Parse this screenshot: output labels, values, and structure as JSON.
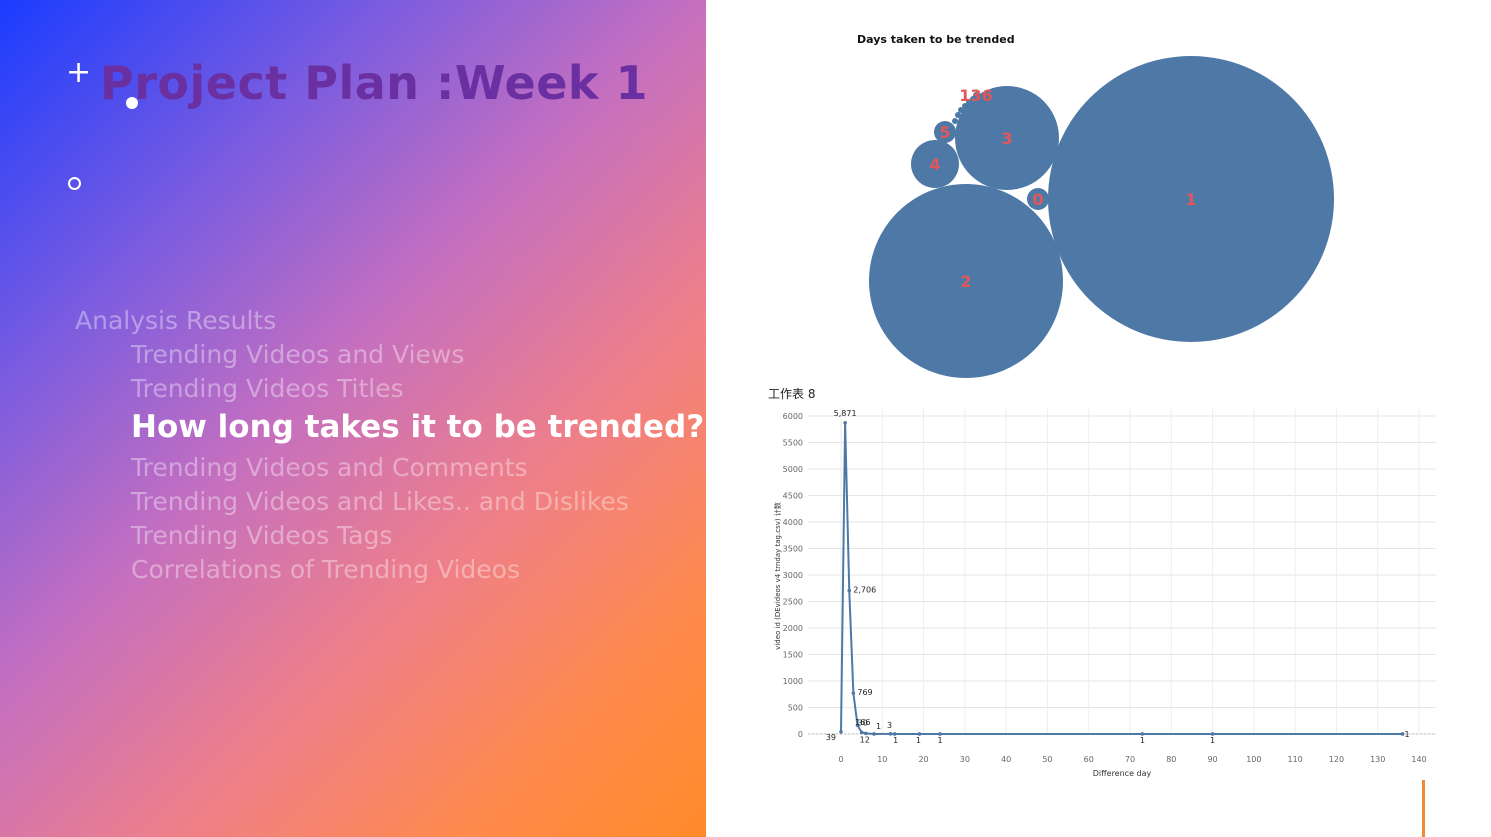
{
  "slide": {
    "title": "Project Plan :Week 1",
    "agenda": [
      {
        "label": "Analysis Results",
        "active": false
      },
      {
        "label": "Trending Videos and Views",
        "active": false
      },
      {
        "label": "Trending Videos Titles",
        "active": false
      },
      {
        "label": "How long takes it to be trended?",
        "active": true
      },
      {
        "label": "Trending Videos and Comments",
        "active": false
      },
      {
        "label": "Trending Videos and Likes.. and Dislikes",
        "active": false
      },
      {
        "label": "Trending Videos Tags",
        "active": false
      },
      {
        "label": "Correlations of Trending Videos",
        "active": false
      }
    ]
  },
  "colors": {
    "title": "#6a2fa0",
    "bubble_fill": "#4e79a7",
    "bubble_label": "#e15759",
    "line": "#4e79a7",
    "accent": "#f08a3a"
  },
  "chart_data": [
    {
      "type": "bubble",
      "title": "Days taken to be trended",
      "bubbles": [
        {
          "label": "1",
          "value": 5871
        },
        {
          "label": "2",
          "value": 2706
        },
        {
          "label": "3",
          "value": 769
        },
        {
          "label": "4",
          "value": 166
        },
        {
          "label": "5",
          "value": 30
        },
        {
          "label": "0",
          "value": 39
        },
        {
          "label": "136",
          "value": 1
        }
      ]
    },
    {
      "type": "line",
      "title": "工作表 8",
      "xlabel": "Difference day",
      "ylabel": "video id (DEvideos v4 trnday tag.csv) 计数",
      "xlim": [
        -5,
        140
      ],
      "ylim": [
        0,
        6000
      ],
      "xticks": [
        0,
        10,
        20,
        30,
        40,
        50,
        60,
        70,
        80,
        90,
        100,
        110,
        120,
        130,
        140
      ],
      "yticks": [
        0,
        500,
        1000,
        1500,
        2000,
        2500,
        3000,
        3500,
        4000,
        4500,
        5000,
        5500,
        6000
      ],
      "grid": true,
      "points": [
        {
          "x": 0,
          "y": 39,
          "label": "39"
        },
        {
          "x": 1,
          "y": 5871,
          "label": "5,871"
        },
        {
          "x": 2,
          "y": 2706,
          "label": "2,706"
        },
        {
          "x": 3,
          "y": 769,
          "label": "769"
        },
        {
          "x": 4,
          "y": 166,
          "label": "166"
        },
        {
          "x": 5,
          "y": 30,
          "label": "30"
        },
        {
          "x": 6,
          "y": 12,
          "label": "12"
        },
        {
          "x": 8,
          "y": 1,
          "label": "1"
        },
        {
          "x": 12,
          "y": 3,
          "label": "3"
        },
        {
          "x": 13,
          "y": 1,
          "label": "1"
        },
        {
          "x": 19,
          "y": 1,
          "label": "1"
        },
        {
          "x": 24,
          "y": 1,
          "label": "1"
        },
        {
          "x": 73,
          "y": 1,
          "label": "1"
        },
        {
          "x": 90,
          "y": 1,
          "label": "1"
        },
        {
          "x": 136,
          "y": 1,
          "label": "1"
        }
      ]
    }
  ]
}
